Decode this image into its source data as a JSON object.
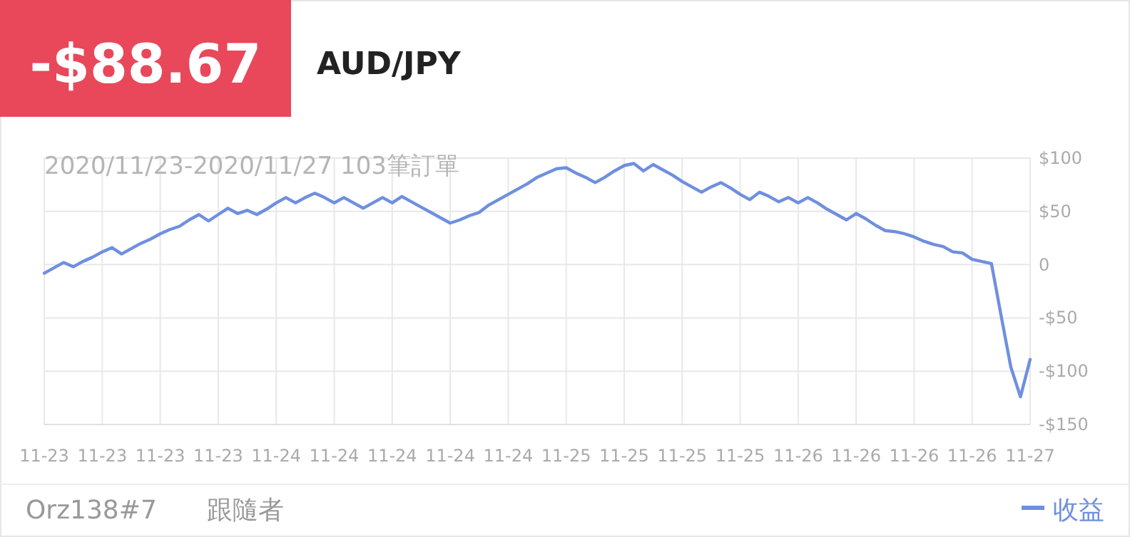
{
  "chart_data": {
    "type": "line",
    "title": "AUD/JPY",
    "subtitle": "2020/11/23-2020/11/27 103筆訂單",
    "annotations": [
      "-$88.67",
      "Orz138#7",
      "跟隨者"
    ],
    "categories": [
      "11-23",
      null,
      null,
      null,
      null,
      null,
      "11-23",
      null,
      null,
      null,
      null,
      null,
      "11-23",
      null,
      null,
      null,
      null,
      null,
      "11-23",
      null,
      null,
      null,
      null,
      null,
      "11-24",
      null,
      null,
      null,
      null,
      null,
      "11-24",
      null,
      null,
      null,
      null,
      null,
      "11-24",
      null,
      null,
      null,
      null,
      null,
      "11-24",
      null,
      null,
      null,
      null,
      null,
      "11-24",
      null,
      null,
      null,
      null,
      null,
      "11-25",
      null,
      null,
      null,
      null,
      null,
      "11-25",
      null,
      null,
      null,
      null,
      null,
      "11-25",
      null,
      null,
      null,
      null,
      null,
      "11-25",
      null,
      null,
      null,
      null,
      null,
      "11-26",
      null,
      null,
      null,
      null,
      null,
      "11-26",
      null,
      null,
      null,
      null,
      null,
      "11-26",
      null,
      null,
      null,
      null,
      null,
      "11-26",
      null,
      null,
      null,
      null,
      null,
      "11-27"
    ],
    "series": [
      {
        "name": "收益",
        "color": "#6f8fe0",
        "values": [
          -8,
          -3,
          2,
          -2,
          3,
          7,
          12,
          16,
          10,
          15,
          20,
          24,
          29,
          33,
          36,
          42,
          47,
          41,
          47,
          53,
          48,
          51,
          47,
          52,
          58,
          63,
          58,
          63,
          67,
          63,
          58,
          63,
          58,
          53,
          58,
          63,
          58,
          64,
          59,
          54,
          49,
          44,
          39,
          42,
          46,
          49,
          56,
          61,
          66,
          71,
          76,
          82,
          86,
          90,
          91,
          86,
          82,
          77,
          82,
          88,
          93,
          95,
          88,
          94,
          89,
          84,
          78,
          73,
          68,
          73,
          77,
          72,
          66,
          61,
          68,
          64,
          59,
          63,
          58,
          63,
          58,
          52,
          47,
          42,
          48,
          43,
          37,
          32,
          31,
          29,
          26,
          22,
          19,
          17,
          12,
          11,
          5,
          3,
          1,
          -48,
          -96,
          -124,
          -89
        ]
      }
    ],
    "ylim": [
      -150,
      100
    ],
    "yticks": [
      {
        "value": 100,
        "label": "$100"
      },
      {
        "value": 50,
        "label": "$50"
      },
      0,
      {
        "value": -50,
        "label": "-$50"
      },
      {
        "value": -100,
        "label": "-$100"
      },
      {
        "value": -150,
        "label": "-$150"
      }
    ],
    "grid": true,
    "legend": "bottom right",
    "line_style": "solid"
  }
}
